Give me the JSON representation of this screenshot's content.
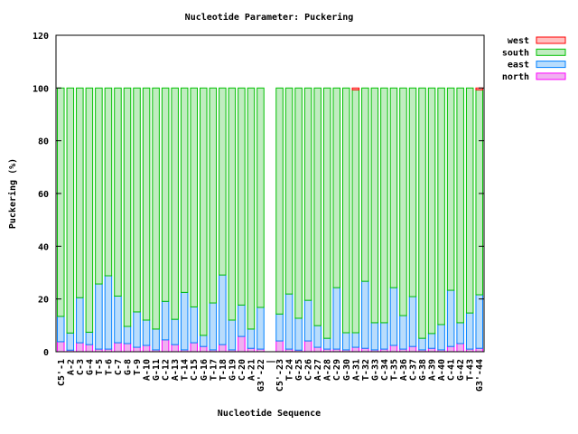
{
  "chart_data": {
    "type": "bar",
    "stacked": true,
    "title": "Nucleotide Parameter: Puckering",
    "xlabel": "Nucleotide Sequence",
    "ylabel": "Puckering (%)",
    "ylim": [
      0,
      120
    ],
    "yticks": [
      0,
      20,
      40,
      60,
      80,
      100,
      120
    ],
    "legend_position": "top-right (outside)",
    "categories": [
      "C5'-1",
      "A-2",
      "C-3",
      "G-4",
      "T-5",
      "T-6",
      "C-7",
      "G-8",
      "T-9",
      "A-10",
      "G-11",
      "C-12",
      "A-13",
      "T-14",
      "C-15",
      "G-16",
      "T-17",
      "T-18",
      "G-19",
      "C-20",
      "A-21",
      "G3'-22",
      "|",
      "C5'-23",
      "T-24",
      "G-25",
      "C-26",
      "A-27",
      "A-28",
      "C-29",
      "G-30",
      "A-31",
      "T-32",
      "G-33",
      "C-34",
      "T-35",
      "A-36",
      "C-37",
      "G-38",
      "A-39",
      "A-40",
      "C-41",
      "G-42",
      "T-43",
      "G3'-44"
    ],
    "series": [
      {
        "name": "north",
        "color": "#ff00ff",
        "fill": "#f0b0f0",
        "values": [
          3.8,
          0.6,
          3.4,
          2.7,
          1,
          1,
          3.4,
          3.1,
          1.7,
          2.4,
          0.7,
          4.5,
          2.7,
          0.7,
          3.4,
          2,
          0.7,
          2.7,
          0.7,
          5.8,
          1.3,
          1,
          null,
          4.1,
          1,
          0.6,
          4.1,
          1.7,
          1,
          1,
          0.7,
          1.7,
          1.3,
          0.7,
          1,
          2.4,
          1,
          2,
          0.7,
          1.3,
          0.7,
          2,
          3.1,
          1,
          1.3
        ]
      },
      {
        "name": "east",
        "color": "#0080ff",
        "fill": "#b8dcfc",
        "values": [
          9.6,
          6.5,
          17.1,
          4.7,
          24.7,
          27.8,
          17.7,
          6.5,
          13.4,
          9.6,
          7.9,
          14.6,
          9.6,
          21.8,
          13.6,
          4.2,
          17.8,
          26.4,
          11.3,
          11.9,
          7.3,
          15.8,
          null,
          10.2,
          20.9,
          12.1,
          15.4,
          8.2,
          4.1,
          23.3,
          6.5,
          5.5,
          25.4,
          10.3,
          10,
          21.9,
          12.7,
          18.9,
          4.4,
          5.6,
          9.6,
          21.3,
          7.9,
          13.7,
          20.3
        ]
      },
      {
        "name": "south",
        "color": "#00c000",
        "fill": "#c0ecc0",
        "values": [
          86.6,
          92.9,
          79.5,
          92.6,
          74.3,
          71.2,
          78.9,
          90.4,
          84.9,
          88,
          91.4,
          80.9,
          87.7,
          77.5,
          83,
          93.8,
          81.5,
          70.9,
          88,
          82.3,
          91.4,
          83.2,
          null,
          85.7,
          78.1,
          87.3,
          80.5,
          90.1,
          94.9,
          75.7,
          92.8,
          92.1,
          73.3,
          89,
          89,
          75.7,
          86.3,
          79.1,
          94.9,
          93.1,
          89.7,
          76.7,
          89,
          85.3,
          77.7
        ]
      },
      {
        "name": "west",
        "color": "#ff0000",
        "fill": "#ffc0c0",
        "values": [
          0,
          0,
          0,
          0,
          0,
          0,
          0,
          0,
          0,
          0,
          0,
          0,
          0,
          0,
          0,
          0,
          0,
          0,
          0,
          0,
          0,
          0,
          null,
          0,
          0,
          0,
          0,
          0,
          0,
          0,
          0,
          0.7,
          0,
          0,
          0,
          0,
          0,
          0,
          0,
          0,
          0,
          0,
          0,
          0,
          0.7
        ]
      }
    ]
  }
}
